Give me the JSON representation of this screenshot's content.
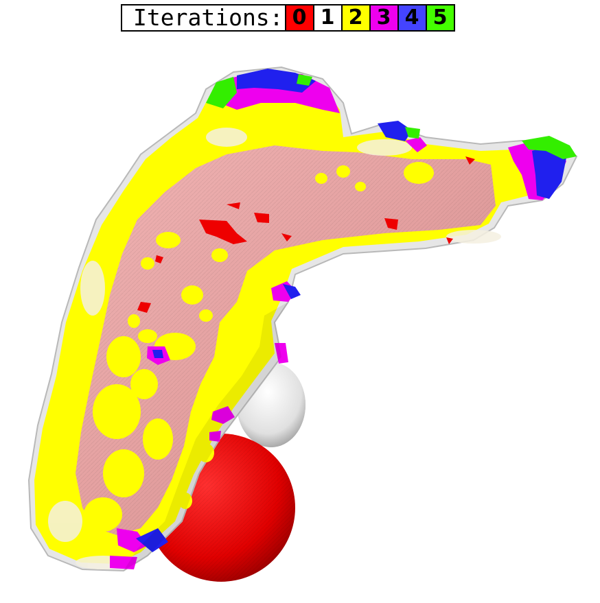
{
  "legend": {
    "title": "Iterations:",
    "entries": [
      {
        "label": "0",
        "color": "#ff0000"
      },
      {
        "label": "1",
        "color": "#ffffff"
      },
      {
        "label": "2",
        "color": "#ffff00"
      },
      {
        "label": "3",
        "color": "#ee00ee"
      },
      {
        "label": "4",
        "color": "#4444ff"
      },
      {
        "label": "5",
        "color": "#44ff00"
      }
    ]
  },
  "scene": {
    "subject": "voxelized 3D surface colored by iteration",
    "base_color": "#e8a0a0",
    "colors": {
      "iter0": "#ff0000",
      "iter1": "#f2f2f2",
      "iter2": "#ffff00",
      "iter3": "#ee00ee",
      "iter4": "#2020ee",
      "iter5": "#33ee00"
    }
  }
}
